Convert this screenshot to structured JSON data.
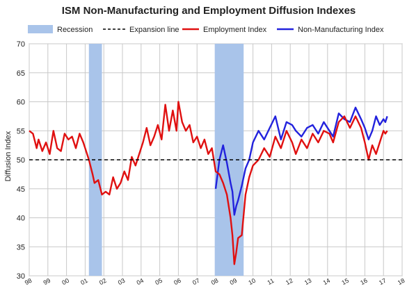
{
  "chart_data": {
    "type": "line",
    "title": "ISM Non-Manufacturing and Employment Diffusion Indexes",
    "ylabel": "Diffusion Index",
    "xlabel": "",
    "ylim": [
      30,
      70
    ],
    "yticks": [
      30,
      35,
      40,
      45,
      50,
      55,
      60,
      65,
      70
    ],
    "xlim": [
      1998,
      2018
    ],
    "xticks": [
      "98",
      "99",
      "00",
      "01",
      "02",
      "03",
      "04",
      "05",
      "06",
      "07",
      "08",
      "09",
      "10",
      "11",
      "12",
      "13",
      "14",
      "15",
      "16",
      "17",
      "18"
    ],
    "grid": true,
    "legend_position": "top",
    "legend": [
      "Recession",
      "Expansion line",
      "Employment Index",
      "Non-Manufacturing Index"
    ],
    "recessions": [
      [
        2001.2,
        2001.9
      ],
      [
        2007.95,
        2009.5
      ]
    ],
    "expansion_line": 50,
    "colors": {
      "employment": "#e01010",
      "non_manufacturing": "#2222dd",
      "recession": "#a9c4ea",
      "expansion": "#000000",
      "grid": "#c8c8c8"
    },
    "series": [
      {
        "name": "Employment Index",
        "x": [
          1998.0,
          1998.2,
          1998.4,
          1998.5,
          1998.7,
          1998.9,
          1999.1,
          1999.3,
          1999.5,
          1999.7,
          1999.9,
          2000.1,
          2000.3,
          2000.5,
          2000.7,
          2000.9,
          2001.0,
          2001.2,
          2001.4,
          2001.5,
          2001.7,
          2001.9,
          2002.1,
          2002.3,
          2002.5,
          2002.7,
          2002.9,
          2003.1,
          2003.3,
          2003.5,
          2003.7,
          2003.9,
          2004.1,
          2004.3,
          2004.5,
          2004.7,
          2004.9,
          2005.1,
          2005.3,
          2005.5,
          2005.7,
          2005.9,
          2006.0,
          2006.2,
          2006.4,
          2006.6,
          2006.8,
          2007.0,
          2007.2,
          2007.4,
          2007.6,
          2007.8,
          2008.0,
          2008.2,
          2008.4,
          2008.6,
          2008.8,
          2008.9,
          2009.0,
          2009.1,
          2009.2,
          2009.4,
          2009.6,
          2009.8,
          2010.0,
          2010.3,
          2010.6,
          2010.9,
          2011.2,
          2011.5,
          2011.8,
          2012.1,
          2012.3,
          2012.6,
          2012.9,
          2013.2,
          2013.5,
          2013.8,
          2014.1,
          2014.3,
          2014.6,
          2014.9,
          2015.2,
          2015.5,
          2015.8,
          2016.0,
          2016.2,
          2016.4,
          2016.6,
          2016.8,
          2017.0,
          2017.1,
          2017.2
        ],
        "values": [
          55.0,
          54.5,
          52.0,
          53.5,
          51.5,
          53.0,
          51.0,
          55.0,
          52.0,
          51.5,
          54.5,
          53.5,
          54.0,
          52.0,
          54.5,
          53.0,
          52.0,
          50.0,
          47.5,
          46.0,
          46.5,
          44.0,
          44.5,
          44.0,
          47.0,
          45.0,
          46.0,
          48.0,
          46.5,
          50.5,
          49.0,
          51.0,
          53.0,
          55.5,
          52.5,
          54.0,
          56.0,
          53.5,
          59.5,
          55.0,
          58.5,
          55.0,
          60.0,
          56.5,
          55.0,
          56.0,
          53.0,
          54.0,
          52.0,
          53.5,
          51.0,
          52.0,
          48.0,
          47.5,
          46.0,
          44.0,
          40.0,
          37.0,
          32.0,
          34.0,
          36.5,
          37.0,
          44.0,
          47.0,
          49.0,
          50.0,
          52.0,
          50.5,
          54.0,
          52.0,
          55.0,
          53.0,
          51.0,
          53.5,
          52.0,
          54.5,
          53.0,
          55.0,
          54.5,
          53.0,
          56.5,
          57.5,
          55.5,
          57.5,
          55.5,
          53.0,
          50.0,
          52.5,
          51.0,
          53.0,
          55.0,
          54.5,
          55.0
        ]
      },
      {
        "name": "Non-Manufacturing Index",
        "x": [
          2008.0,
          2008.2,
          2008.4,
          2008.6,
          2008.8,
          2008.9,
          2009.0,
          2009.1,
          2009.2,
          2009.4,
          2009.6,
          2009.8,
          2010.0,
          2010.3,
          2010.6,
          2010.9,
          2011.2,
          2011.5,
          2011.8,
          2012.1,
          2012.3,
          2012.6,
          2012.9,
          2013.2,
          2013.5,
          2013.8,
          2014.1,
          2014.3,
          2014.6,
          2014.9,
          2015.2,
          2015.5,
          2015.8,
          2016.0,
          2016.2,
          2016.4,
          2016.6,
          2016.8,
          2017.0,
          2017.1,
          2017.2
        ],
        "values": [
          45.0,
          50.0,
          52.5,
          49.5,
          46.0,
          44.5,
          40.5,
          42.0,
          43.0,
          45.5,
          48.5,
          50.0,
          53.0,
          55.0,
          53.5,
          55.5,
          57.5,
          53.5,
          56.5,
          56.0,
          55.0,
          54.0,
          55.5,
          56.0,
          54.5,
          56.5,
          55.0,
          54.0,
          58.0,
          57.0,
          56.5,
          59.0,
          57.0,
          55.5,
          53.5,
          55.0,
          57.5,
          56.0,
          57.0,
          56.5,
          57.5
        ]
      }
    ]
  }
}
